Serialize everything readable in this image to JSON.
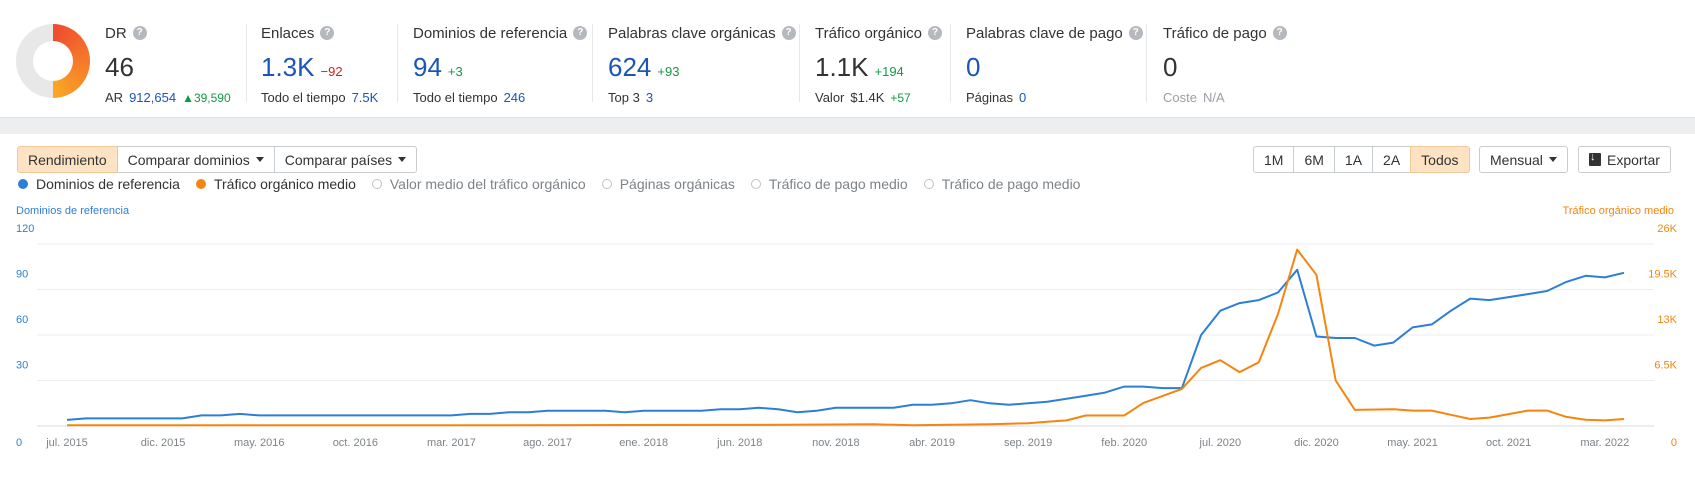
{
  "metrics": {
    "dr": {
      "label": "DR",
      "value": "46",
      "sub_label": "AR",
      "sub_value": "912,654",
      "sub_delta": "39,590"
    },
    "enlaces": {
      "label": "Enlaces",
      "value": "1.3K",
      "delta": "−92",
      "sub_label": "Todo el tiempo",
      "sub_value": "7.5K"
    },
    "dominios": {
      "label": "Dominios de referencia",
      "value": "94",
      "delta": "+3",
      "sub_label": "Todo el tiempo",
      "sub_value": "246"
    },
    "keywords": {
      "label": "Palabras clave orgánicas",
      "value": "624",
      "delta": "+93",
      "sub_label": "Top 3",
      "sub_value": "3"
    },
    "trafico": {
      "label": "Tráfico orgánico",
      "value": "1.1K",
      "delta": "+194",
      "sub_label": "Valor",
      "sub_value": "$1.4K",
      "sub_delta": "+57"
    },
    "pago_kw": {
      "label": "Palabras clave de pago",
      "value": "0",
      "sub_label": "Páginas",
      "sub_value": "0"
    },
    "pago_traf": {
      "label": "Tráfico de pago",
      "value": "0",
      "sub_label": "Coste",
      "sub_value": "N/A"
    }
  },
  "toolbar": {
    "tabs": [
      "Rendimiento",
      "Comparar dominios",
      "Comparar países"
    ],
    "ranges": [
      "1M",
      "6M",
      "1A",
      "2A",
      "Todos"
    ],
    "interval": "Mensual",
    "export": "Exportar"
  },
  "legend": [
    {
      "label": "Dominios de referencia",
      "color": "#2d7fd6",
      "active": true
    },
    {
      "label": "Tráfico orgánico medio",
      "color": "#f5850e",
      "active": true
    },
    {
      "label": "Valor medio del tráfico orgánico",
      "active": false
    },
    {
      "label": "Páginas orgánicas",
      "active": false
    },
    {
      "label": "Tráfico de pago medio",
      "active": false
    },
    {
      "label": "Tráfico de pago medio",
      "active": false
    }
  ],
  "chart_data": {
    "type": "line",
    "left_axis_title": "Dominios de referencia",
    "right_axis_title": "Tráfico orgánico medio",
    "left_ticks": [
      "0",
      "30",
      "60",
      "90",
      "120"
    ],
    "right_ticks": [
      "0",
      "6.5K",
      "13K",
      "19.5K",
      "26K"
    ],
    "left_ylim": [
      0,
      120
    ],
    "right_ylim": [
      0,
      26000
    ],
    "x_labels": [
      "jul. 2015",
      "dic. 2015",
      "may. 2016",
      "oct. 2016",
      "mar. 2017",
      "ago. 2017",
      "ene. 2018",
      "jun. 2018",
      "nov. 2018",
      "abr. 2019",
      "sep. 2019",
      "feb. 2020",
      "jul. 2020",
      "dic. 2020",
      "may. 2021",
      "oct. 2021",
      "mar. 2022"
    ],
    "x_range_months": [
      0,
      81
    ],
    "series": [
      {
        "name": "Dominios de referencia",
        "color": "#2d7fd6",
        "axis": "left",
        "points": [
          [
            0,
            4
          ],
          [
            1,
            5
          ],
          [
            6,
            5
          ],
          [
            7,
            7
          ],
          [
            8,
            7
          ],
          [
            9,
            8
          ],
          [
            10,
            7
          ],
          [
            20,
            7
          ],
          [
            21,
            8
          ],
          [
            22,
            8
          ],
          [
            23,
            9
          ],
          [
            24,
            9
          ],
          [
            25,
            10
          ],
          [
            28,
            10
          ],
          [
            29,
            9
          ],
          [
            30,
            10
          ],
          [
            33,
            10
          ],
          [
            34,
            11
          ],
          [
            35,
            11
          ],
          [
            36,
            12
          ],
          [
            37,
            11
          ],
          [
            38,
            9
          ],
          [
            39,
            10
          ],
          [
            40,
            12
          ],
          [
            43,
            12
          ],
          [
            44,
            14
          ],
          [
            45,
            14
          ],
          [
            46,
            15
          ],
          [
            47,
            17
          ],
          [
            48,
            15
          ],
          [
            49,
            14
          ],
          [
            50,
            15
          ],
          [
            51,
            16
          ],
          [
            52,
            18
          ],
          [
            53,
            20
          ],
          [
            54,
            22
          ],
          [
            55,
            26
          ],
          [
            56,
            26
          ],
          [
            57,
            25
          ],
          [
            58,
            25
          ],
          [
            59,
            60
          ],
          [
            60,
            76
          ],
          [
            61,
            81
          ],
          [
            62,
            83
          ],
          [
            63,
            88
          ],
          [
            64,
            103
          ],
          [
            65,
            59
          ],
          [
            66,
            58
          ],
          [
            67,
            58
          ],
          [
            68,
            53
          ],
          [
            69,
            55
          ],
          [
            70,
            65
          ],
          [
            71,
            67
          ],
          [
            72,
            76
          ],
          [
            73,
            84
          ],
          [
            74,
            83
          ],
          [
            75,
            85
          ],
          [
            76,
            87
          ],
          [
            77,
            89
          ],
          [
            78,
            95
          ],
          [
            79,
            99
          ],
          [
            80,
            98
          ],
          [
            81,
            101
          ]
        ]
      },
      {
        "name": "Tráfico orgánico medio",
        "color": "#f5850e",
        "axis": "right",
        "points": [
          [
            0,
            100
          ],
          [
            18,
            100
          ],
          [
            36,
            150
          ],
          [
            42,
            250
          ],
          [
            44,
            100
          ],
          [
            48,
            250
          ],
          [
            50,
            400
          ],
          [
            51,
            600
          ],
          [
            52,
            800
          ],
          [
            53,
            1500
          ],
          [
            55,
            1500
          ],
          [
            56,
            3300
          ],
          [
            57,
            4300
          ],
          [
            58,
            5300
          ],
          [
            59,
            8300
          ],
          [
            60,
            9400
          ],
          [
            61,
            7700
          ],
          [
            62,
            9100
          ],
          [
            63,
            16000
          ],
          [
            64,
            25200
          ],
          [
            65,
            21600
          ],
          [
            66,
            6500
          ],
          [
            67,
            2300
          ],
          [
            69,
            2400
          ],
          [
            70,
            2200
          ],
          [
            71,
            2200
          ],
          [
            72,
            1600
          ],
          [
            73,
            1000
          ],
          [
            74,
            1200
          ],
          [
            75,
            1700
          ],
          [
            76,
            2200
          ],
          [
            77,
            2200
          ],
          [
            78,
            1300
          ],
          [
            79,
            900
          ],
          [
            80,
            800
          ],
          [
            81,
            1000
          ]
        ]
      }
    ]
  }
}
